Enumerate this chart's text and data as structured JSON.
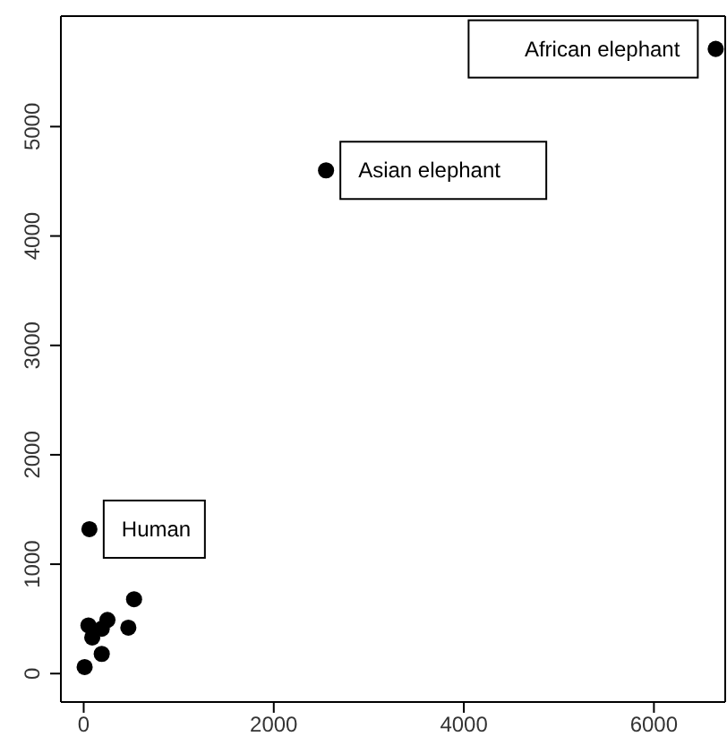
{
  "chart_data": {
    "type": "scatter",
    "x": [
      6650,
      2550,
      60,
      530,
      470,
      190,
      250,
      190,
      90,
      50,
      10
    ],
    "values": [
      5710,
      4600,
      1320,
      680,
      420,
      410,
      490,
      180,
      330,
      440,
      60
    ],
    "color": "#000000",
    "marker": "circle",
    "xlim": [
      -240,
      6750
    ],
    "ylim": [
      -260,
      6010
    ],
    "xticks": [
      0,
      2000,
      4000,
      6000
    ],
    "yticks": [
      0,
      1000,
      2000,
      3000,
      4000,
      5000
    ],
    "grid": false,
    "annotations": [
      {
        "text": "African elephant",
        "x": 6650,
        "y": 5710
      },
      {
        "text": "Asian elephant",
        "x": 2550,
        "y": 4600
      },
      {
        "text": "Human",
        "x": 60,
        "y": 1320
      }
    ]
  }
}
